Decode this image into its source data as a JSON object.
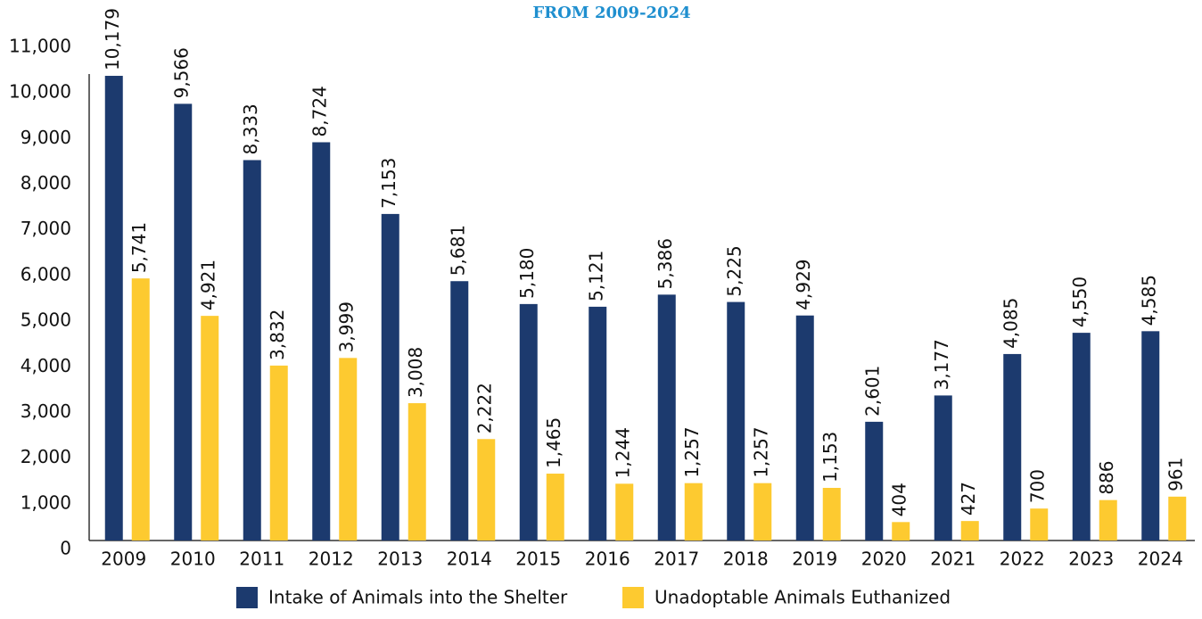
{
  "chart_data": {
    "type": "bar",
    "title": "FROM 2009-2024",
    "categories": [
      "2009",
      "2010",
      "2011",
      "2012",
      "2013",
      "2014",
      "2015",
      "2016",
      "2017",
      "2018",
      "2019",
      "2020",
      "2021",
      "2022",
      "2023",
      "2024"
    ],
    "series": [
      {
        "name": "Intake of Animals into the Shelter",
        "color": "#1c3a6e",
        "values": [
          10179,
          9566,
          8333,
          8724,
          7153,
          5681,
          5180,
          5121,
          5386,
          5225,
          4929,
          2601,
          3177,
          4085,
          4550,
          4585
        ],
        "value_labels": [
          "10,179",
          "9,566",
          "8,333",
          "8,724",
          "7,153",
          "5,681",
          "5,180",
          "5,121",
          "5,386",
          "5,225",
          "4,929",
          "2,601",
          "3,177",
          "4,085",
          "4,550",
          "4,585"
        ]
      },
      {
        "name": "Unadoptable Animals Euthanized",
        "color": "#fdca30",
        "values": [
          5741,
          4921,
          3832,
          3999,
          3008,
          2222,
          1465,
          1244,
          1257,
          1257,
          1153,
          404,
          427,
          700,
          886,
          961
        ],
        "value_labels": [
          "5,741",
          "4,921",
          "3,832",
          "3,999",
          "3,008",
          "2,222",
          "1,465",
          "1,244",
          "1,257",
          "1,257",
          "1,153",
          "404",
          "427",
          "700",
          "886",
          "961"
        ]
      }
    ],
    "ylim": [
      0,
      11000
    ],
    "yticks": [
      0,
      {
        "value": 1000,
        "label": "1,000"
      },
      {
        "value": 2000,
        "label": "2,000"
      },
      {
        "value": 3000,
        "label": "3,000"
      },
      {
        "value": 4000,
        "label": "4,000"
      },
      {
        "value": 5000,
        "label": "5,000"
      },
      {
        "value": 6000,
        "label": "6,000"
      },
      {
        "value": 7000,
        "label": "7,000"
      },
      {
        "value": 8000,
        "label": "8,000"
      },
      {
        "value": 9000,
        "label": "9,000"
      },
      {
        "value": 10000,
        "label": "10,000"
      },
      {
        "value": 11000,
        "label": "11,000"
      }
    ],
    "legend": "bottom"
  }
}
